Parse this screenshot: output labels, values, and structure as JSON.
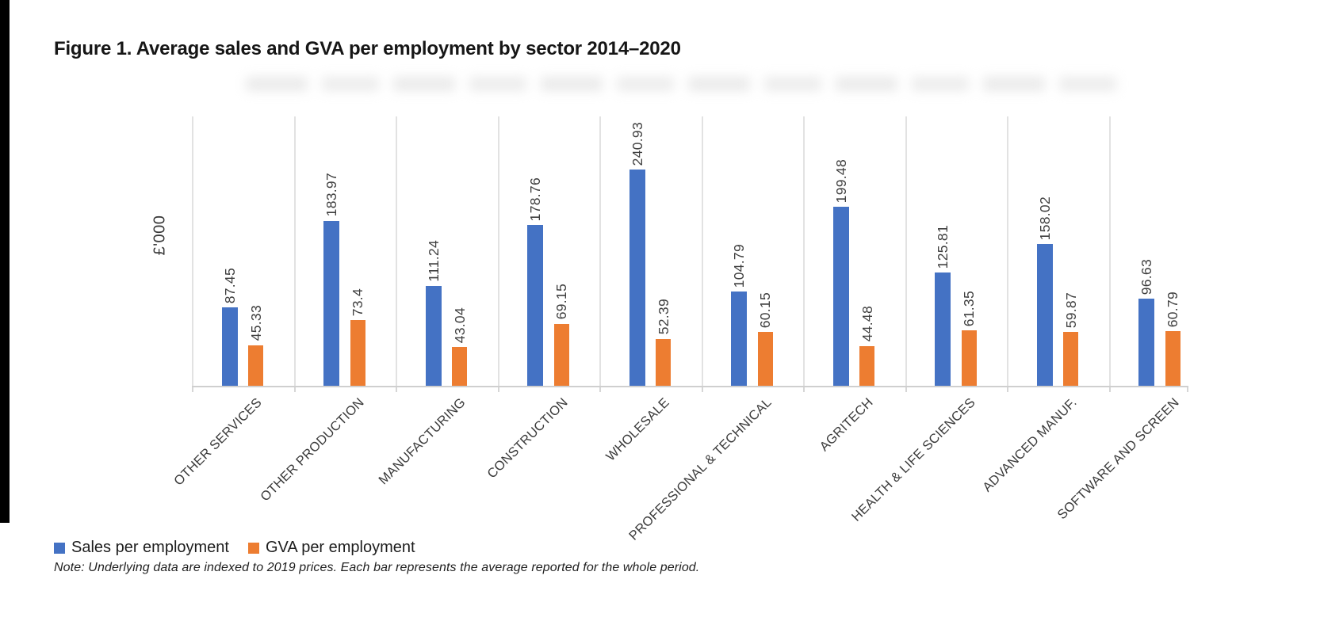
{
  "figure": {
    "title": "Figure 1. Average sales and GVA per employment by sector 2014–2020",
    "note": "Note: Underlying data are indexed to 2019 prices. Each bar represents the average reported for the whole period."
  },
  "chart_data": {
    "type": "bar",
    "title": "",
    "xlabel": "",
    "ylabel": "£'000",
    "ylim": [
      0,
      300
    ],
    "grid": "vertical category separator lines, no horizontal gridlines, no y tick labels",
    "legend_position": "bottom-left",
    "data_labels": "values rotated 90deg above each bar",
    "categories": [
      "OTHER SERVICES",
      "OTHER PRODUCTION",
      "MANUFACTURING",
      "CONSTRUCTION",
      "WHOLESALE",
      "PROFESSIONAL & TECHNICAL",
      "AGRITECH",
      "HEALTH & LIFE SCIENCES",
      "ADVANCED MANUF.",
      "SOFTWARE AND SCREEN"
    ],
    "series": [
      {
        "name": "Sales per employment",
        "color": "#4472C4",
        "values": [
          87.45,
          183.97,
          111.24,
          178.76,
          240.93,
          104.79,
          199.48,
          125.81,
          158.02,
          96.63
        ]
      },
      {
        "name": "GVA per employment",
        "color": "#ED7D31",
        "values": [
          45.33,
          73.4,
          43.04,
          69.15,
          52.39,
          60.15,
          44.48,
          61.35,
          59.87,
          60.79
        ]
      }
    ]
  },
  "colors": {
    "series_sales": "#4472C4",
    "series_gva": "#ED7D31",
    "gridline": "#e2e2e2",
    "axis_line": "#cfcfcf",
    "label_text": "#3f3f3f",
    "left_strip": "#000000",
    "background": "#ffffff"
  }
}
